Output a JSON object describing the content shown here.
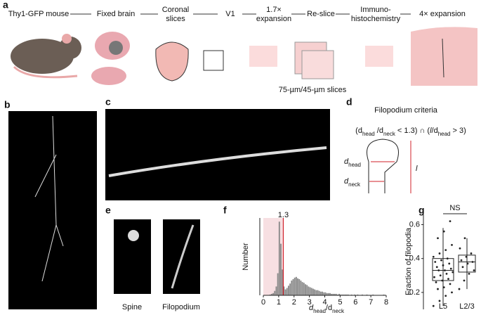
{
  "panel_labels": [
    "a",
    "b",
    "c",
    "d",
    "e",
    "f",
    "g"
  ],
  "panel_a": {
    "steps": [
      [
        "Thy1-GFP mouse"
      ],
      [
        "Fixed brain"
      ],
      [
        "Coronal",
        "slices"
      ],
      [
        "V1"
      ],
      [
        "1.7×",
        "expansion"
      ],
      [
        "Re-slice"
      ],
      [
        "Immuno-",
        "histochemistry"
      ],
      [
        "4× expansion"
      ]
    ],
    "slice_note": "75-µm/45-µm slices"
  },
  "panel_d": {
    "title": "Filopodium criteria",
    "formula": [
      {
        "text": "(d"
      },
      {
        "text": "head",
        "sub": true
      },
      {
        "text": " /d"
      },
      {
        "text": "neck",
        "sub": true
      },
      {
        "text": " < 1.3) ∩ ("
      },
      {
        "text": "l",
        "italic": true
      },
      {
        "text": "/d"
      },
      {
        "text": "head",
        "sub": true
      },
      {
        "text": " > 3)"
      }
    ],
    "head_label": [
      {
        "text": "d"
      },
      {
        "text": "head",
        "sub": true
      }
    ],
    "neck_label": [
      {
        "text": "d"
      },
      {
        "text": "neck",
        "sub": true
      }
    ],
    "length_label": "l"
  },
  "panel_e": {
    "captions": [
      "Spine",
      "Filopodium"
    ]
  },
  "chart_data": [
    {
      "type": "histogram",
      "color": "#8a8a8a",
      "ylabel": "Number",
      "xlabel": [
        {
          "text": "d"
        },
        {
          "text": "head",
          "sub": true
        },
        {
          "text": "/d"
        },
        {
          "text": "neck",
          "sub": true
        }
      ],
      "threshold": 1.3,
      "threshold_color": "#d0202a",
      "shade_color": "#f7dfe2",
      "xlim": [
        0,
        8
      ],
      "xticks": [
        0,
        1,
        2,
        3,
        4,
        5,
        6,
        7,
        8
      ],
      "ylim": [
        0,
        105
      ],
      "bins": [
        0,
        0.1,
        0.2,
        0.3,
        0.4,
        0.5,
        0.6,
        0.7,
        0.8,
        0.9,
        1,
        1.1,
        1.2,
        1.3,
        1.4,
        1.5,
        1.6,
        1.7,
        1.8,
        1.9,
        2,
        2.1,
        2.2,
        2.3,
        2.4,
        2.5,
        2.6,
        2.7,
        2.8,
        2.9,
        3,
        3.1,
        3.2,
        3.3,
        3.4,
        3.5,
        3.6,
        3.7,
        3.8,
        3.9,
        4,
        4.1,
        4.2,
        4.3,
        4.4,
        4.5,
        4.6,
        4.7,
        4.8,
        4.9,
        5,
        5.1,
        5.2,
        5.3,
        5.4,
        5.5,
        5.6,
        5.7,
        5.8,
        5.9,
        6,
        6.1,
        6.2,
        6.3,
        6.4,
        6.5,
        6.6,
        6.7,
        6.8,
        6.9,
        7,
        7.1,
        7.2,
        7.3,
        7.4,
        7.5,
        7.6,
        7.7,
        7.8,
        7.9,
        8
      ],
      "values": [
        0,
        0,
        0,
        0,
        1,
        2,
        3,
        6,
        12,
        30,
        100,
        70,
        35,
        12,
        8,
        10,
        13,
        16,
        20,
        22,
        24,
        25,
        23,
        22,
        20,
        18,
        17,
        15,
        14,
        12,
        11,
        10,
        9,
        8,
        7,
        7,
        6,
        5,
        5,
        4,
        4,
        3,
        3,
        3,
        2,
        2,
        2,
        2,
        1,
        2,
        1,
        1,
        1,
        1,
        1,
        1,
        0,
        1,
        0,
        1,
        0,
        1,
        0,
        0,
        1,
        0,
        0,
        1,
        0,
        0,
        0,
        1,
        0,
        0,
        0,
        0,
        0,
        0,
        1,
        0
      ]
    },
    {
      "type": "box",
      "annotation": "NS",
      "ylabel": "Fraction of filopodia",
      "categories": [
        "L5",
        "L2/3"
      ],
      "ylim": [
        0.1,
        0.66
      ],
      "yticks": [
        0.2,
        0.4,
        0.6
      ],
      "boxes": [
        {
          "whisker_low": 0.12,
          "q1": 0.27,
          "median": 0.33,
          "q3": 0.4,
          "whisker_high": 0.58,
          "points": [
            0.12,
            0.15,
            0.18,
            0.2,
            0.22,
            0.23,
            0.25,
            0.26,
            0.27,
            0.28,
            0.29,
            0.3,
            0.31,
            0.32,
            0.33,
            0.33,
            0.34,
            0.35,
            0.36,
            0.37,
            0.38,
            0.39,
            0.4,
            0.41,
            0.43,
            0.45,
            0.48,
            0.52,
            0.56,
            0.62
          ]
        },
        {
          "whisker_low": 0.22,
          "q1": 0.32,
          "median": 0.38,
          "q3": 0.42,
          "whisker_high": 0.52,
          "points": [
            0.22,
            0.27,
            0.31,
            0.33,
            0.35,
            0.37,
            0.38,
            0.39,
            0.41,
            0.43,
            0.46,
            0.52
          ]
        }
      ]
    }
  ]
}
